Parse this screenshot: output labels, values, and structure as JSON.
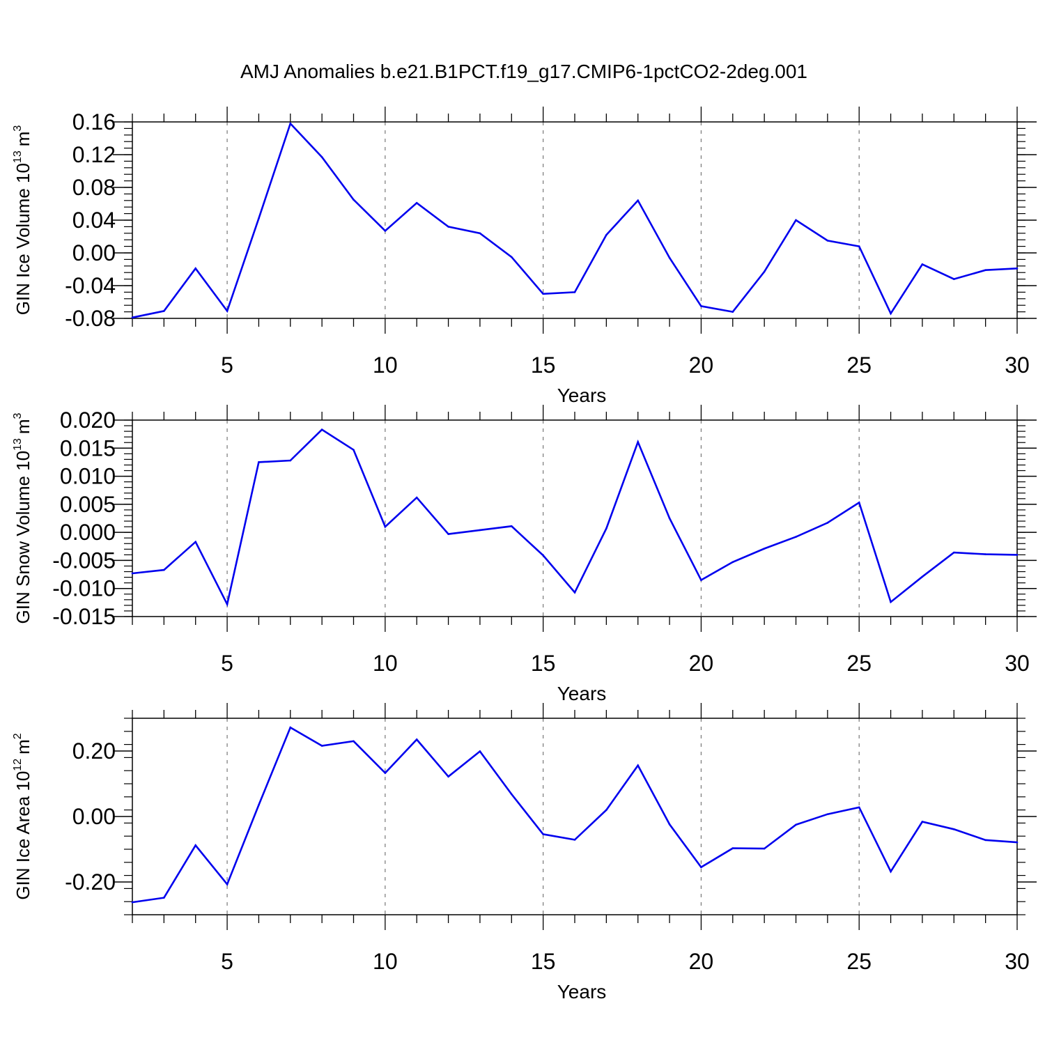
{
  "page_title": "AMJ Anomalies b.e21.B1PCT.f19_g17.CMIP6-1pctCO2-2deg.001",
  "colors": {
    "line": "#0000ee",
    "axis": "#000000",
    "grid": "#777777",
    "background": "#ffffff"
  },
  "chart_data": [
    {
      "type": "line",
      "ylabel": {
        "text": "GIN Ice Volume 10",
        "exponent": "13",
        "unit": "m",
        "unit_exponent": "3"
      },
      "xlabel": "Years",
      "xlim": [
        2,
        30
      ],
      "ylim": [
        -0.08,
        0.16
      ],
      "grid": "vertical dashed at major x ticks",
      "x_ticks": [
        5,
        10,
        15,
        20,
        25,
        30
      ],
      "x_tick_labels": [
        "5",
        "10",
        "15",
        "20",
        "25",
        "30"
      ],
      "y_ticks": [
        -0.08,
        -0.04,
        0.0,
        0.04,
        0.08,
        0.12,
        0.16
      ],
      "y_tick_labels": [
        "-0.08",
        "-0.04",
        "0.00",
        "0.04",
        "0.08",
        "0.12",
        "0.16"
      ],
      "y_minor_step": 0.008,
      "x": [
        2,
        3,
        4,
        5,
        6,
        7,
        8,
        9,
        10,
        11,
        12,
        13,
        14,
        15,
        16,
        17,
        18,
        19,
        20,
        21,
        22,
        23,
        24,
        25,
        26,
        27,
        28,
        29,
        30
      ],
      "values": [
        -0.079,
        -0.071,
        -0.019,
        -0.071,
        0.042,
        0.158,
        0.117,
        0.065,
        0.027,
        0.061,
        0.032,
        0.024,
        -0.005,
        -0.05,
        -0.048,
        0.022,
        0.064,
        -0.006,
        -0.065,
        -0.072,
        -0.023,
        0.04,
        0.015,
        0.008,
        -0.074,
        -0.014,
        -0.032,
        -0.021,
        -0.019
      ]
    },
    {
      "type": "line",
      "ylabel": {
        "text": "GIN Snow Volume 10",
        "exponent": "13",
        "unit": "m",
        "unit_exponent": "3"
      },
      "xlabel": "Years",
      "xlim": [
        2,
        30
      ],
      "ylim": [
        -0.015,
        0.02
      ],
      "grid": "vertical dashed at major x ticks",
      "x_ticks": [
        5,
        10,
        15,
        20,
        25,
        30
      ],
      "x_tick_labels": [
        "5",
        "10",
        "15",
        "20",
        "25",
        "30"
      ],
      "y_ticks": [
        -0.015,
        -0.01,
        -0.005,
        0.0,
        0.005,
        0.01,
        0.015,
        0.02
      ],
      "y_tick_labels": [
        "-0.015",
        "-0.010",
        "-0.005",
        "0.000",
        "0.005",
        "0.010",
        "0.015",
        "0.020"
      ],
      "y_minor_step": 0.001,
      "x": [
        2,
        3,
        4,
        5,
        6,
        7,
        8,
        9,
        10,
        11,
        12,
        13,
        14,
        15,
        16,
        17,
        18,
        19,
        20,
        21,
        22,
        23,
        24,
        25,
        26,
        27,
        28,
        29,
        30
      ],
      "values": [
        -0.0073,
        -0.0067,
        -0.0017,
        -0.0128,
        0.0125,
        0.0128,
        0.0183,
        0.0147,
        0.001,
        0.0062,
        -0.0003,
        0.0004,
        0.0011,
        -0.0041,
        -0.0107,
        0.0007,
        0.0161,
        0.0025,
        -0.0085,
        -0.0053,
        -0.0029,
        -0.0008,
        0.0017,
        0.0053,
        -0.0124,
        -0.0079,
        -0.0036,
        -0.0039,
        -0.004
      ]
    },
    {
      "type": "line",
      "ylabel": {
        "text": "GIN Ice Area 10",
        "exponent": "12",
        "unit": "m",
        "unit_exponent": "2"
      },
      "xlabel": "Years",
      "xlim": [
        2,
        30
      ],
      "ylim": [
        -0.3,
        0.3
      ],
      "grid": "vertical dashed at major x ticks",
      "x_ticks": [
        5,
        10,
        15,
        20,
        25,
        30
      ],
      "x_tick_labels": [
        "5",
        "10",
        "15",
        "20",
        "25",
        "30"
      ],
      "y_ticks": [
        -0.2,
        0.0,
        0.2
      ],
      "y_tick_labels": [
        "-0.20",
        "0.00",
        "0.20"
      ],
      "y_minor_step": 0.04,
      "x": [
        2,
        3,
        4,
        5,
        6,
        7,
        8,
        9,
        10,
        11,
        12,
        13,
        14,
        15,
        16,
        17,
        18,
        19,
        20,
        21,
        22,
        23,
        24,
        25,
        26,
        27,
        28,
        29,
        30
      ],
      "values": [
        -0.262,
        -0.248,
        -0.088,
        -0.207,
        0.035,
        0.272,
        0.216,
        0.23,
        0.133,
        0.235,
        0.122,
        0.199,
        0.068,
        -0.054,
        -0.071,
        0.02,
        0.156,
        -0.024,
        -0.155,
        -0.097,
        -0.098,
        -0.025,
        0.007,
        0.028,
        -0.168,
        -0.016,
        -0.039,
        -0.072,
        -0.079
      ]
    }
  ]
}
